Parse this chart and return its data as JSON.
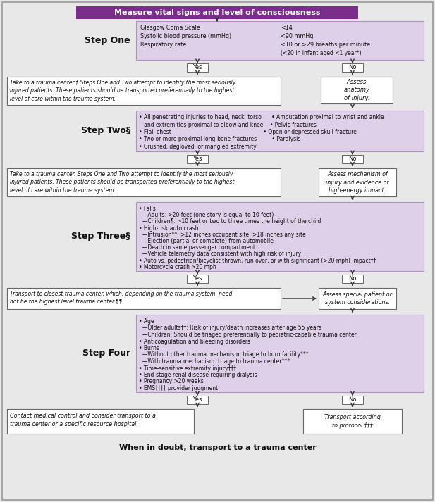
{
  "title_text": "Measure vital signs and level of consciousness",
  "title_bg": "#7b2d8b",
  "title_fg": "#ffffff",
  "box_purple_light": "#ddd0e8",
  "box_purple_border": "#b090c0",
  "box_white_bg": "#ffffff",
  "box_white_border": "#666666",
  "arrow_color": "#333333",
  "bg_color": "#e8e8e8",
  "bottom_text": "When in doubt, transport to a trauma center",
  "step1_label": "Step One",
  "step1_content_l": "Glasgow Coma Scale\nSystolic blood pressure (mmHg)\nRespiratory rate",
  "step1_content_r": "<14\n<90 mmHg\n<10 or >29 breaths per minute\n(<20 in infant aged <1 year*)",
  "step1_yes_box": "Take to a trauma center.† Steps One and Two attempt to identify the most seriously\ninjured patients. These patients should be transported preferentially to the highest\nlevel of care within the trauma system.",
  "step1_no_box": "Assess\nanatomy\nof injury.",
  "step2_label": "Step Two§",
  "step2_content": "• All penetrating injuries to head, neck, torso      • Amputation proximal to wrist and ankle\n   and extremities proximal to elbow and knee    • Pelvic fractures\n• Flail chest                                                       • Open or depressed skull fracture\n• Two or more proximal long-bone fractures         • Paralysis\n• Crushed, degloved, or mangled extremity",
  "step2_yes_box": "Take to a trauma center. Steps One and Two attempt to identify the most seriously\ninjured patients. These patients should be transported preferentially to the highest\nlevel of care within the trauma system.",
  "step2_no_box": "Assess mechanism of\ninjury and evidence of\nhigh-energy impact.",
  "step3_label": "Step Three§",
  "step3_content": "• Falls\n  —Adults: >20 feet (one story is equal to 10 feet)\n  —Children¶: >10 feet or two to three times the height of the child\n• High-risk auto crash\n  —Intrusion**: >12 inches occupant site; >18 inches any site\n  —Ejection (partial or complete) from automobile\n  —Death in same passenger compartment\n  —Vehicle telemetry data consistent with high risk of injury\n• Auto vs. pedestrian/bicyclist thrown, run over, or with significant (>20 mph) impact††\n• Motorcycle crash >20 mph",
  "step3_yes_box": "Transport to closest trauma center, which, depending on the trauma system, need\nnot be the highest level trauma center.¶¶",
  "step3_no_box": "Assess special patient or\nsystem considerations.",
  "step4_label": "Step Four",
  "step4_content": "• Age\n  —Older adults††: Risk of injury/death increases after age 55 years\n  —Children: Should be triaged preferentially to pediatric-capable trauma center\n• Anticoagulation and bleeding disorders\n• Burns\n  —Without other trauma mechanism: triage to burn facility***\n  —With trauma mechanism: triage to trauma center***\n• Time-sensitive extremity injury†††\n• End-stage renal disease requiring dialysis\n• Pregnancy >20 weeks\n• EMS†††† provider judgment",
  "step4_yes_box": "Contact medical control and consider transport to a\ntrauma center or a specific resource hospital.",
  "step4_no_box": "Transport according\nto protocol.†††"
}
